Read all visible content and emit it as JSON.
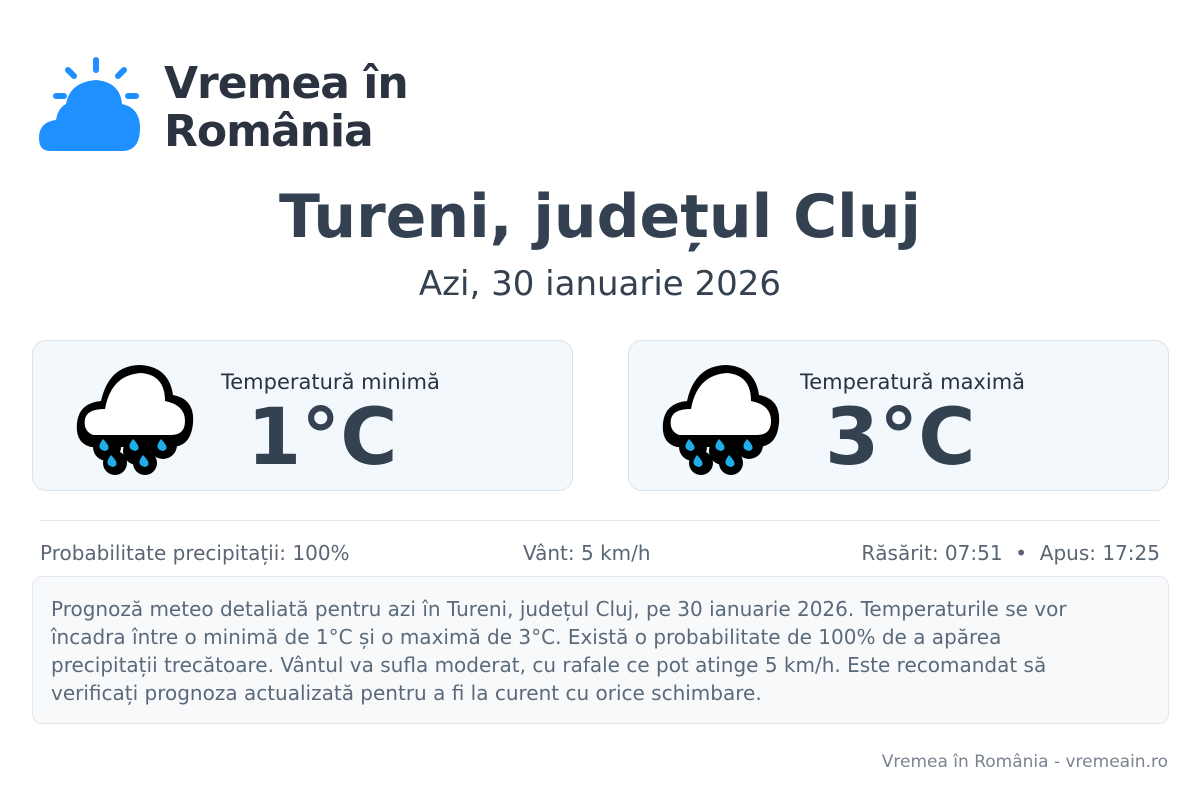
{
  "brand": {
    "name": "Vremea în România",
    "line1": "Vremea în",
    "line2": "România",
    "color": "#1e90ff"
  },
  "header": {
    "title": "Tureni, județul Cluj",
    "date": "Azi, 30 ianuarie 2026"
  },
  "cards": [
    {
      "label": "Temperatură minimă",
      "value": "1°C",
      "icon": "rain-cloud-icon"
    },
    {
      "label": "Temperatură maximă",
      "value": "3°C",
      "icon": "rain-cloud-icon"
    }
  ],
  "stats": {
    "precip": "Probabilitate precipitații: 100%",
    "wind": "Vânt: 5 km/h",
    "sun": "Răsărit: 07:51  •  Apus: 17:25"
  },
  "description": "Prognoză meteo detaliată pentru azi în Tureni, județul Cluj, pe 30 ianuarie 2026. Temperaturile se vor încadra între o minimă de 1°C și o maximă de 3°C. Există o probabilitate de 100% de a apărea precipitații trecătoare. Vântul va sufla moderat, cu rafale ce pot atinge 5 km/h. Este recomandat să verificați prognoza actualizată pentru a fi la curent cu orice schimbare.",
  "footer": "Vremea în România - vremeain.ro"
}
